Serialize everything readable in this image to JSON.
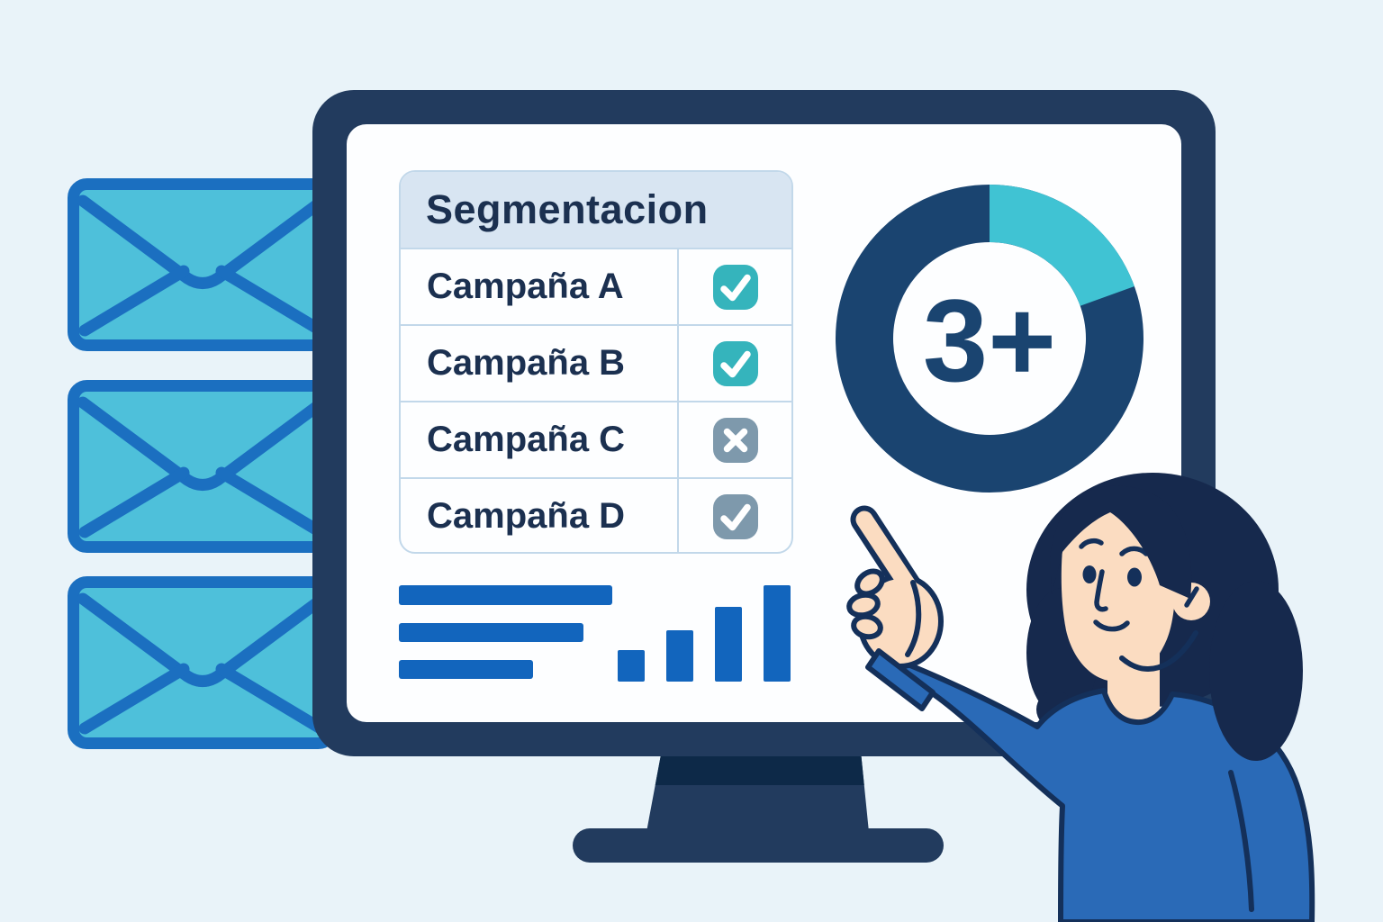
{
  "palette": {
    "background": "#e9f3f9",
    "monitor_frame": "#223b5e",
    "monitor_frame_dark": "#0d2948",
    "screen": "#fdfeff",
    "table_border": "#c2d8ea",
    "header_bg": "#d8e5f2",
    "text_navy": "#1b3050",
    "bright_blue": "#1265bd",
    "envelope_fill": "#4ec0da",
    "envelope_border": "#1b6fc0",
    "donut_navy": "#1a4470",
    "hair": "#16294d",
    "skin": "#fbdcc1",
    "shirt": "#2a6ab7",
    "outline": "#14305a"
  },
  "envelopes": {
    "count": 3
  },
  "monitor": {
    "table": {
      "title": "Segmentacion",
      "rows": [
        {
          "label": "Campaña A",
          "icon": "check",
          "badge_color": "#35b4bc",
          "state": "included"
        },
        {
          "label": "Campaña B",
          "icon": "check",
          "badge_color": "#35b4bc",
          "state": "included"
        },
        {
          "label": "Campaña C",
          "icon": "x",
          "badge_color": "#7e99ac",
          "state": "excluded"
        },
        {
          "label": "Campaña D",
          "icon": "check",
          "badge_color": "#7e99ac",
          "state": "included-muted"
        }
      ]
    },
    "decorative_text_lines": {
      "widths": [
        237,
        205,
        149
      ],
      "color": "#1265bd"
    }
  },
  "chart_data": [
    {
      "type": "pie",
      "style": "donut",
      "center_label": "3+",
      "labels": [
        "highlighted segment",
        "remainder"
      ],
      "values": [
        19.5,
        80.5
      ],
      "colors": [
        "#40c3d3",
        "#1a4470"
      ],
      "legend": "none",
      "title": ""
    },
    {
      "type": "bar",
      "categories": [
        "",
        "",
        "",
        ""
      ],
      "values": [
        35,
        57,
        83,
        107
      ],
      "bar_color": "#1265bd",
      "title": "",
      "xlabel": "",
      "ylabel": ""
    }
  ]
}
